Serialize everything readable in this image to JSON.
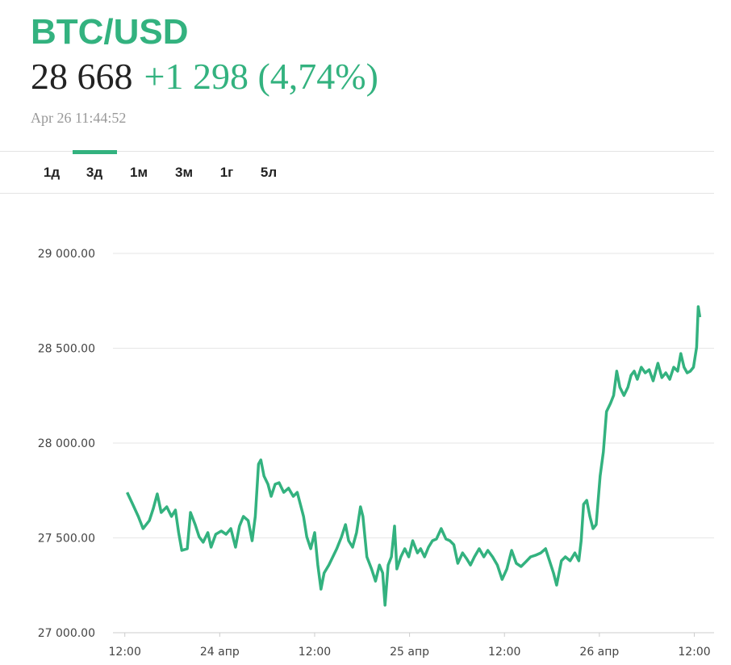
{
  "header": {
    "symbol": "BTC/USD",
    "price": "28 668",
    "change": "+1 298 (4,74%)",
    "time": "Apr 26 11:44:52"
  },
  "tabs": {
    "items": [
      "1д",
      "3д",
      "1м",
      "3м",
      "1г",
      "5л"
    ],
    "active": 1
  },
  "chart_data": {
    "type": "line",
    "x": [
      0.3,
      1.0,
      1.7,
      2.3,
      3.1,
      3.6,
      4.1,
      4.6,
      5.3,
      5.9,
      6.4,
      6.8,
      7.2,
      7.9,
      8.3,
      8.9,
      9.4,
      9.9,
      10.5,
      10.9,
      11.5,
      12.2,
      12.8,
      13.4,
      14.0,
      14.5,
      15.0,
      15.6,
      16.1,
      16.5,
      16.9,
      17.2,
      17.6,
      18.1,
      18.5,
      19.0,
      19.5,
      20.1,
      20.7,
      21.3,
      21.8,
      22.2,
      22.6,
      23.0,
      23.5,
      24.0,
      24.4,
      24.8,
      25.2,
      25.8,
      26.3,
      26.8,
      27.4,
      27.9,
      28.3,
      28.8,
      29.3,
      29.8,
      30.1,
      30.6,
      31.2,
      31.7,
      32.2,
      32.6,
      32.9,
      33.3,
      33.7,
      34.1,
      34.4,
      34.9,
      35.4,
      35.9,
      36.4,
      37.0,
      37.4,
      37.9,
      38.4,
      38.9,
      39.4,
      40.0,
      40.6,
      41.1,
      41.6,
      42.1,
      42.7,
      43.2,
      43.7,
      44.2,
      44.8,
      45.4,
      45.9,
      46.5,
      47.1,
      47.7,
      48.3,
      48.9,
      49.5,
      50.1,
      50.7,
      51.3,
      51.9,
      52.6,
      53.2,
      53.7,
      54.2,
      54.6,
      55.2,
      55.7,
      56.3,
      56.9,
      57.4,
      57.7,
      58.0,
      58.4,
      58.8,
      59.2,
      59.6,
      60.1,
      60.5,
      60.9,
      61.4,
      61.8,
      62.2,
      62.6,
      63.1,
      63.6,
      64.0,
      64.4,
      64.8,
      65.3,
      65.8,
      66.3,
      66.8,
      67.4,
      67.9,
      68.4,
      68.9,
      69.4,
      69.9,
      70.3,
      70.7,
      71.1,
      71.5,
      71.9,
      72.3,
      72.5,
      72.7
    ],
    "series": [
      {
        "color": "#33b27f",
        "values": [
          27740,
          27677,
          27613,
          27549,
          27591,
          27655,
          27732,
          27634,
          27664,
          27613,
          27647,
          27528,
          27434,
          27443,
          27634,
          27570,
          27506,
          27477,
          27528,
          27451,
          27519,
          27536,
          27519,
          27549,
          27451,
          27562,
          27613,
          27591,
          27485,
          27613,
          27889,
          27911,
          27826,
          27783,
          27719,
          27783,
          27791,
          27740,
          27762,
          27719,
          27740,
          27677,
          27613,
          27506,
          27443,
          27528,
          27357,
          27230,
          27315,
          27357,
          27400,
          27443,
          27506,
          27570,
          27485,
          27451,
          27528,
          27664,
          27613,
          27400,
          27336,
          27272,
          27357,
          27315,
          27145,
          27357,
          27400,
          27562,
          27336,
          27400,
          27443,
          27400,
          27485,
          27421,
          27443,
          27400,
          27451,
          27485,
          27494,
          27549,
          27494,
          27485,
          27464,
          27366,
          27421,
          27391,
          27357,
          27400,
          27443,
          27400,
          27434,
          27400,
          27357,
          27281,
          27336,
          27434,
          27366,
          27349,
          27374,
          27400,
          27408,
          27421,
          27443,
          27379,
          27315,
          27251,
          27379,
          27400,
          27379,
          27421,
          27379,
          27485,
          27677,
          27698,
          27613,
          27549,
          27570,
          27826,
          27953,
          28166,
          28209,
          28251,
          28379,
          28294,
          28251,
          28294,
          28357,
          28379,
          28336,
          28400,
          28370,
          28387,
          28328,
          28421,
          28345,
          28370,
          28336,
          28400,
          28379,
          28472,
          28400,
          28370,
          28379,
          28400,
          28506,
          28719,
          28664
        ]
      }
    ],
    "xlim": [
      -1.5,
      74.5
    ],
    "xticks": [
      {
        "value": 0,
        "label": "12:00"
      },
      {
        "value": 12,
        "label": "24 апр"
      },
      {
        "value": 24,
        "label": "12:00"
      },
      {
        "value": 36,
        "label": "25 апр"
      },
      {
        "value": 48,
        "label": "12:00"
      },
      {
        "value": 60,
        "label": "26 апр"
      },
      {
        "value": 72,
        "label": "12:00"
      }
    ],
    "ylim": [
      27000,
      29000
    ],
    "yticks": [
      {
        "value": 27000,
        "label": "27 000.00"
      },
      {
        "value": 27500,
        "label": "27 500.00"
      },
      {
        "value": 28000,
        "label": "28 000.00"
      },
      {
        "value": 28500,
        "label": "28 500.00"
      },
      {
        "value": 29000,
        "label": "29 000.00"
      }
    ],
    "grid": true
  }
}
